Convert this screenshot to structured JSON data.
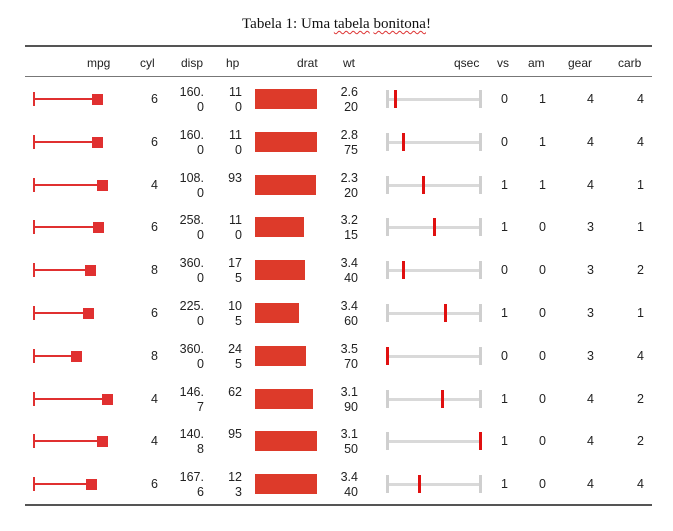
{
  "title_prefix": "Tabela 1: Uma ",
  "title_word_1": "tabela",
  "title_space": " ",
  "title_word_2": "bonitona",
  "title_suffix": "!",
  "headers": {
    "mpg": "mpg",
    "cyl": "cyl",
    "disp": "disp",
    "hp": "hp",
    "drat": "drat",
    "wt": "wt",
    "qsec": "qsec",
    "vs": "vs",
    "am": "am",
    "gear": "gear",
    "carb": "carb"
  },
  "colors": {
    "accent": "#e03030",
    "bar": "#dd3a2a",
    "track": "#d9d9d9"
  },
  "chart_data": {
    "type": "table",
    "rows": [
      {
        "mpg": 21.0,
        "cyl": "6",
        "disp_1": "160.",
        "disp_2": "0",
        "hp_1": "11",
        "hp_2": "0",
        "drat": 3.9,
        "wt_1": "2.6",
        "wt_2": "20",
        "qsec": 16.46,
        "vs": "0",
        "am": "1",
        "gear": "4",
        "carb": "4"
      },
      {
        "mpg": 21.0,
        "cyl": "6",
        "disp_1": "160.",
        "disp_2": "0",
        "hp_1": "11",
        "hp_2": "0",
        "drat": 3.9,
        "wt_1": "2.8",
        "wt_2": "75",
        "qsec": 17.02,
        "vs": "0",
        "am": "1",
        "gear": "4",
        "carb": "4"
      },
      {
        "mpg": 22.8,
        "cyl": "4",
        "disp_1": "108.",
        "disp_2": "0",
        "hp_1": "93",
        "hp_2": "",
        "drat": 3.85,
        "wt_1": "2.3",
        "wt_2": "20",
        "qsec": 18.61,
        "vs": "1",
        "am": "1",
        "gear": "4",
        "carb": "1"
      },
      {
        "mpg": 21.4,
        "cyl": "6",
        "disp_1": "258.",
        "disp_2": "0",
        "hp_1": "11",
        "hp_2": "0",
        "drat": 3.08,
        "wt_1": "3.2",
        "wt_2": "15",
        "qsec": 19.44,
        "vs": "1",
        "am": "0",
        "gear": "3",
        "carb": "1"
      },
      {
        "mpg": 18.7,
        "cyl": "8",
        "disp_1": "360.",
        "disp_2": "0",
        "hp_1": "17",
        "hp_2": "5",
        "drat": 3.15,
        "wt_1": "3.4",
        "wt_2": "40",
        "qsec": 17.02,
        "vs": "0",
        "am": "0",
        "gear": "3",
        "carb": "2"
      },
      {
        "mpg": 18.1,
        "cyl": "6",
        "disp_1": "225.",
        "disp_2": "0",
        "hp_1": "10",
        "hp_2": "5",
        "drat": 2.76,
        "wt_1": "3.4",
        "wt_2": "60",
        "qsec": 20.22,
        "vs": "1",
        "am": "0",
        "gear": "3",
        "carb": "1"
      },
      {
        "mpg": 14.3,
        "cyl": "8",
        "disp_1": "360.",
        "disp_2": "0",
        "hp_1": "24",
        "hp_2": "5",
        "drat": 3.21,
        "wt_1": "3.5",
        "wt_2": "70",
        "qsec": 15.84,
        "vs": "0",
        "am": "0",
        "gear": "3",
        "carb": "4"
      },
      {
        "mpg": 24.4,
        "cyl": "4",
        "disp_1": "146.",
        "disp_2": "7",
        "hp_1": "62",
        "hp_2": "",
        "drat": 3.69,
        "wt_1": "3.1",
        "wt_2": "90",
        "qsec": 20.0,
        "vs": "1",
        "am": "0",
        "gear": "4",
        "carb": "2"
      },
      {
        "mpg": 22.8,
        "cyl": "4",
        "disp_1": "140.",
        "disp_2": "8",
        "hp_1": "95",
        "hp_2": "",
        "drat": 3.92,
        "wt_1": "3.1",
        "wt_2": "50",
        "qsec": 22.9,
        "vs": "1",
        "am": "0",
        "gear": "4",
        "carb": "2"
      },
      {
        "mpg": 19.2,
        "cyl": "6",
        "disp_1": "167.",
        "disp_2": "6",
        "hp_1": "12",
        "hp_2": "3",
        "drat": 3.92,
        "wt_1": "3.4",
        "wt_2": "40",
        "qsec": 18.3,
        "vs": "1",
        "am": "0",
        "gear": "4",
        "carb": "4"
      }
    ],
    "mpg_range": [
      0,
      24.4
    ],
    "drat_range": [
      0,
      3.92
    ],
    "qsec_range": [
      15.84,
      22.9
    ]
  }
}
